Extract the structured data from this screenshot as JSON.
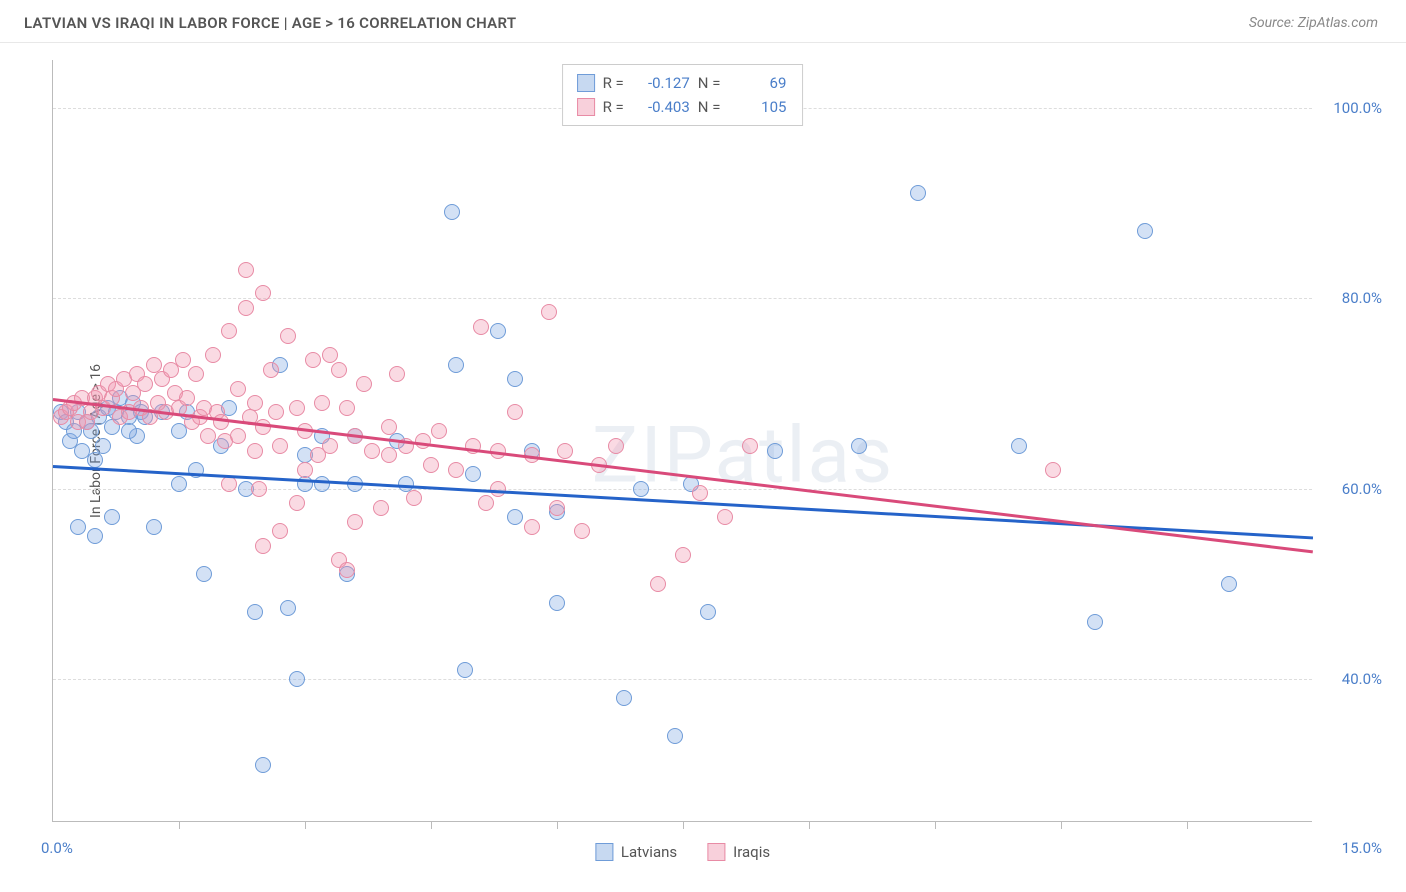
{
  "header": {
    "title": "LATVIAN VS IRAQI IN LABOR FORCE | AGE > 16 CORRELATION CHART",
    "source": "Source: ZipAtlas.com"
  },
  "chart": {
    "type": "scatter",
    "watermark": "ZIPatlas",
    "ylabel": "In Labor Force | Age > 16",
    "background_color": "#ffffff",
    "grid_color": "#dddddd",
    "axis_color": "#bbbbbb",
    "xlim": [
      0,
      15
    ],
    "ylim": [
      25,
      105
    ],
    "yticks": [
      40.0,
      60.0,
      80.0,
      100.0
    ],
    "ytick_labels": [
      "40.0%",
      "60.0%",
      "80.0%",
      "100.0%"
    ],
    "xtick_positions": [
      1.5,
      3.0,
      4.5,
      6.0,
      7.5,
      9.0,
      10.5,
      12.0,
      13.5
    ],
    "xlim_labels": [
      "0.0%",
      "15.0%"
    ],
    "marker_radius": 8,
    "marker_stroke_width": 1,
    "series": [
      {
        "name": "Latvians",
        "fill_color": "rgba(130,170,225,0.35)",
        "stroke_color": "#6f9cd8",
        "legend_fill": "rgba(130,170,225,0.45)",
        "legend_stroke": "#6f9cd8",
        "R_label": "R =",
        "R_value": "-0.127",
        "N_label": "N =",
        "N_value": "69",
        "trend": {
          "y_at_xmin": 62.5,
          "y_at_xmax": 55.0,
          "color": "#2563c9",
          "width": 2.5
        },
        "points": [
          [
            0.1,
            68
          ],
          [
            0.15,
            67
          ],
          [
            0.2,
            65
          ],
          [
            0.25,
            66
          ],
          [
            0.3,
            68
          ],
          [
            0.35,
            64
          ],
          [
            0.4,
            67
          ],
          [
            0.45,
            66
          ],
          [
            0.5,
            63
          ],
          [
            0.55,
            67.5
          ],
          [
            0.6,
            64.5
          ],
          [
            0.65,
            68.5
          ],
          [
            0.7,
            66.5
          ],
          [
            0.75,
            68
          ],
          [
            0.8,
            69.5
          ],
          [
            0.9,
            67.5
          ],
          [
            0.95,
            69
          ],
          [
            1.0,
            65.5
          ],
          [
            1.05,
            68
          ],
          [
            0.3,
            56
          ],
          [
            0.7,
            57
          ],
          [
            0.5,
            55
          ],
          [
            0.9,
            66
          ],
          [
            1.1,
            67.5
          ],
          [
            1.2,
            56
          ],
          [
            1.3,
            68
          ],
          [
            1.5,
            66
          ],
          [
            1.5,
            60.5
          ],
          [
            1.6,
            68
          ],
          [
            1.7,
            62
          ],
          [
            1.8,
            51
          ],
          [
            2.0,
            64.5
          ],
          [
            2.1,
            68.5
          ],
          [
            2.3,
            60
          ],
          [
            2.4,
            47
          ],
          [
            2.5,
            31
          ],
          [
            2.7,
            73
          ],
          [
            2.8,
            47.5
          ],
          [
            2.9,
            40
          ],
          [
            3.0,
            63.5
          ],
          [
            3.0,
            60.5
          ],
          [
            3.2,
            65.5
          ],
          [
            3.2,
            60.5
          ],
          [
            3.5,
            51
          ],
          [
            3.6,
            65.5
          ],
          [
            3.6,
            60.5
          ],
          [
            4.1,
            65
          ],
          [
            4.2,
            60.5
          ],
          [
            4.75,
            89
          ],
          [
            4.8,
            73
          ],
          [
            4.9,
            41
          ],
          [
            5.0,
            61.5
          ],
          [
            5.3,
            76.5
          ],
          [
            5.5,
            71.5
          ],
          [
            5.5,
            57
          ],
          [
            5.7,
            64
          ],
          [
            6.0,
            48
          ],
          [
            6.0,
            57.5
          ],
          [
            6.8,
            38
          ],
          [
            7.0,
            60
          ],
          [
            7.4,
            34
          ],
          [
            7.6,
            60.5
          ],
          [
            7.8,
            47
          ],
          [
            8.6,
            64
          ],
          [
            9.6,
            64.5
          ],
          [
            10.3,
            91
          ],
          [
            11.5,
            64.5
          ],
          [
            12.4,
            46
          ],
          [
            13.0,
            87
          ],
          [
            14.0,
            50
          ]
        ]
      },
      {
        "name": "Iraqis",
        "fill_color": "rgba(240,150,175,0.35)",
        "stroke_color": "#e88ba5",
        "legend_fill": "rgba(240,150,175,0.45)",
        "legend_stroke": "#e88ba5",
        "R_label": "R =",
        "R_value": "-0.403",
        "N_label": "N =",
        "N_value": "105",
        "trend": {
          "y_at_xmin": 69.5,
          "y_at_xmax": 53.5,
          "color": "#d94a7a",
          "width": 2.5
        },
        "points": [
          [
            0.1,
            67.5
          ],
          [
            0.15,
            68
          ],
          [
            0.2,
            68.5
          ],
          [
            0.25,
            69
          ],
          [
            0.3,
            67
          ],
          [
            0.35,
            69.5
          ],
          [
            0.4,
            67
          ],
          [
            0.45,
            68
          ],
          [
            0.5,
            69.5
          ],
          [
            0.55,
            70
          ],
          [
            0.6,
            68.5
          ],
          [
            0.65,
            71
          ],
          [
            0.7,
            69.5
          ],
          [
            0.75,
            70.5
          ],
          [
            0.8,
            67.5
          ],
          [
            0.85,
            71.5
          ],
          [
            0.9,
            68
          ],
          [
            0.95,
            70
          ],
          [
            1.0,
            72
          ],
          [
            1.05,
            68.5
          ],
          [
            1.1,
            71
          ],
          [
            1.15,
            67.5
          ],
          [
            1.2,
            73
          ],
          [
            1.25,
            69
          ],
          [
            1.3,
            71.5
          ],
          [
            1.35,
            68
          ],
          [
            1.4,
            72.5
          ],
          [
            1.45,
            70
          ],
          [
            1.5,
            68.5
          ],
          [
            1.55,
            73.5
          ],
          [
            1.6,
            69.5
          ],
          [
            1.65,
            67
          ],
          [
            1.7,
            72
          ],
          [
            1.75,
            67.5
          ],
          [
            1.8,
            68.5
          ],
          [
            1.85,
            65.5
          ],
          [
            1.9,
            74
          ],
          [
            1.95,
            68
          ],
          [
            2.0,
            67
          ],
          [
            2.05,
            65
          ],
          [
            2.1,
            76.5
          ],
          [
            2.1,
            60.5
          ],
          [
            2.2,
            70.5
          ],
          [
            2.2,
            65.5
          ],
          [
            2.3,
            79
          ],
          [
            2.3,
            83
          ],
          [
            2.35,
            67.5
          ],
          [
            2.4,
            69
          ],
          [
            2.4,
            64
          ],
          [
            2.45,
            60
          ],
          [
            2.5,
            80.5
          ],
          [
            2.5,
            66.5
          ],
          [
            2.5,
            54
          ],
          [
            2.6,
            72.5
          ],
          [
            2.65,
            68
          ],
          [
            2.7,
            64.5
          ],
          [
            2.7,
            55.5
          ],
          [
            2.8,
            76
          ],
          [
            2.9,
            68.5
          ],
          [
            2.9,
            58.5
          ],
          [
            3.0,
            62
          ],
          [
            3.0,
            66
          ],
          [
            3.1,
            73.5
          ],
          [
            3.15,
            63.5
          ],
          [
            3.2,
            69
          ],
          [
            3.3,
            74
          ],
          [
            3.3,
            64.5
          ],
          [
            3.4,
            72.5
          ],
          [
            3.4,
            52.5
          ],
          [
            3.5,
            68.5
          ],
          [
            3.5,
            51.5
          ],
          [
            3.6,
            65.5
          ],
          [
            3.6,
            56.5
          ],
          [
            3.7,
            71
          ],
          [
            3.8,
            64
          ],
          [
            3.9,
            58
          ],
          [
            4.0,
            66.5
          ],
          [
            4.0,
            63.5
          ],
          [
            4.1,
            72
          ],
          [
            4.2,
            64.5
          ],
          [
            4.3,
            59
          ],
          [
            4.4,
            65
          ],
          [
            4.5,
            62.5
          ],
          [
            4.6,
            66
          ],
          [
            4.8,
            62
          ],
          [
            5.0,
            64.5
          ],
          [
            5.1,
            77
          ],
          [
            5.15,
            58.5
          ],
          [
            5.3,
            64
          ],
          [
            5.3,
            60
          ],
          [
            5.5,
            68
          ],
          [
            5.7,
            63.5
          ],
          [
            5.7,
            56
          ],
          [
            5.9,
            78.5
          ],
          [
            6.0,
            58
          ],
          [
            6.1,
            64
          ],
          [
            6.3,
            55.5
          ],
          [
            6.5,
            62.5
          ],
          [
            6.7,
            64.5
          ],
          [
            7.2,
            50
          ],
          [
            7.5,
            53
          ],
          [
            7.7,
            59.5
          ],
          [
            8.0,
            57
          ],
          [
            8.3,
            64.5
          ],
          [
            11.9,
            62
          ]
        ]
      }
    ],
    "legend_stats_box": true,
    "bottom_legend_labels": [
      "Latvians",
      "Iraqis"
    ]
  }
}
